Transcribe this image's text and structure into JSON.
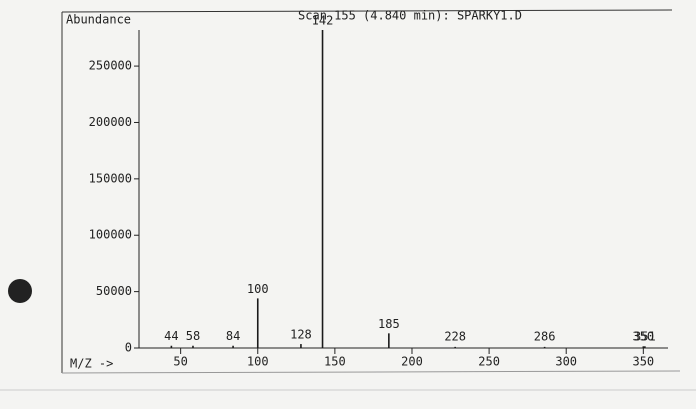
{
  "chart_data": {
    "type": "bar",
    "title": "Scan 155 (4.840 min): SPARKY1.D",
    "y_label": "Abundance",
    "x_label": "M/Z ->",
    "x": [
      44,
      58,
      84,
      100,
      128,
      142,
      185,
      228,
      286,
      350,
      351
    ],
    "values": [
      2000,
      2000,
      2000,
      44000,
      3500,
      282000,
      13000,
      1000,
      1000,
      1500,
      1500
    ],
    "color": "#1a1a1a",
    "xlim": [
      23,
      366
    ],
    "xticks": [
      50,
      100,
      150,
      200,
      250,
      300,
      350
    ],
    "ylim": [
      0,
      282000
    ],
    "yticks": [
      0,
      50000,
      100000,
      150000,
      200000,
      250000
    ]
  }
}
